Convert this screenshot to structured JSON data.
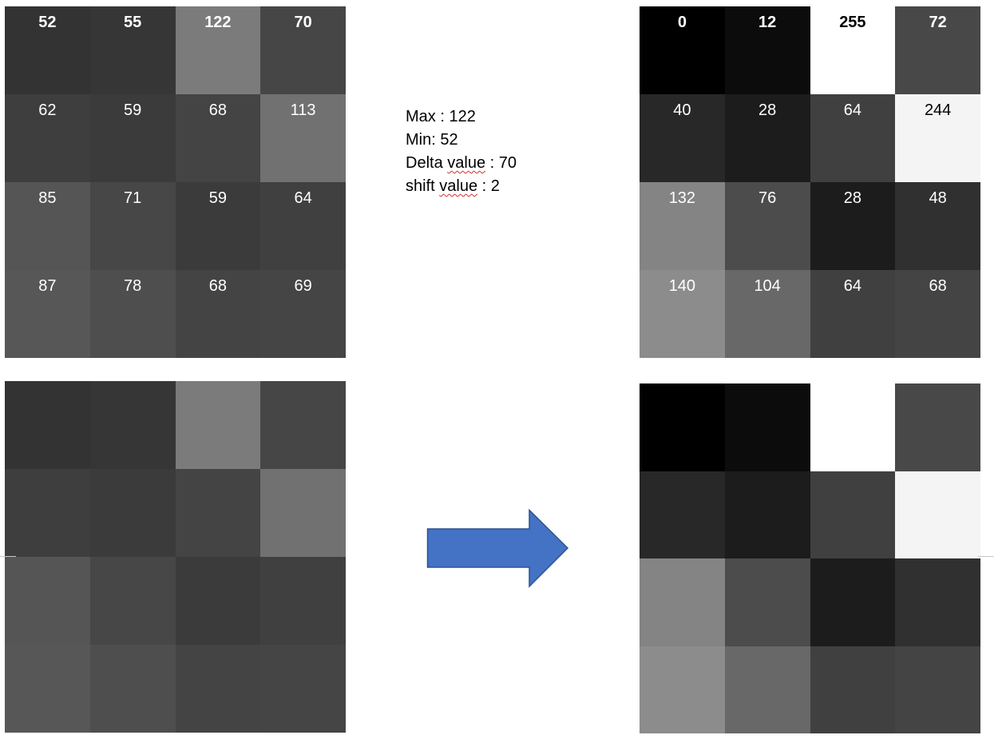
{
  "top_left": {
    "values": [
      [
        52,
        55,
        122,
        70
      ],
      [
        62,
        59,
        68,
        113
      ],
      [
        85,
        71,
        59,
        64
      ],
      [
        87,
        78,
        68,
        69
      ]
    ],
    "colors": [
      [
        "#333333",
        "#363636",
        "#7b7b7b",
        "#464646"
      ],
      [
        "#3e3e3e",
        "#3b3b3b",
        "#444444",
        "#717171"
      ],
      [
        "#555555",
        "#474747",
        "#3b3b3b",
        "#404040"
      ],
      [
        "#575757",
        "#4e4e4e",
        "#444444",
        "#454545"
      ]
    ]
  },
  "top_right": {
    "values": [
      [
        0,
        12,
        255,
        72
      ],
      [
        40,
        28,
        64,
        244
      ],
      [
        132,
        76,
        28,
        48
      ],
      [
        140,
        104,
        64,
        68
      ]
    ],
    "colors": [
      [
        "#000000",
        "#0c0c0c",
        "#ffffff",
        "#484848"
      ],
      [
        "#282828",
        "#1c1c1c",
        "#404040",
        "#f4f4f4"
      ],
      [
        "#848484",
        "#4c4c4c",
        "#1c1c1c",
        "#303030"
      ],
      [
        "#8c8c8c",
        "#686868",
        "#404040",
        "#444444"
      ]
    ]
  },
  "info": {
    "max_label": "Max : ",
    "max_value": "122",
    "min_label": "Min: ",
    "min_value": "52",
    "delta_pre": "Delta ",
    "delta_word": "value",
    "delta_post": " : 70",
    "shift_pre": "shift ",
    "shift_word": "value",
    "shift_post": " : 2"
  },
  "colors": {
    "arrow_fill": "#4472c4",
    "arrow_stroke": "#2f528f",
    "divider": "#c8c8c8"
  }
}
